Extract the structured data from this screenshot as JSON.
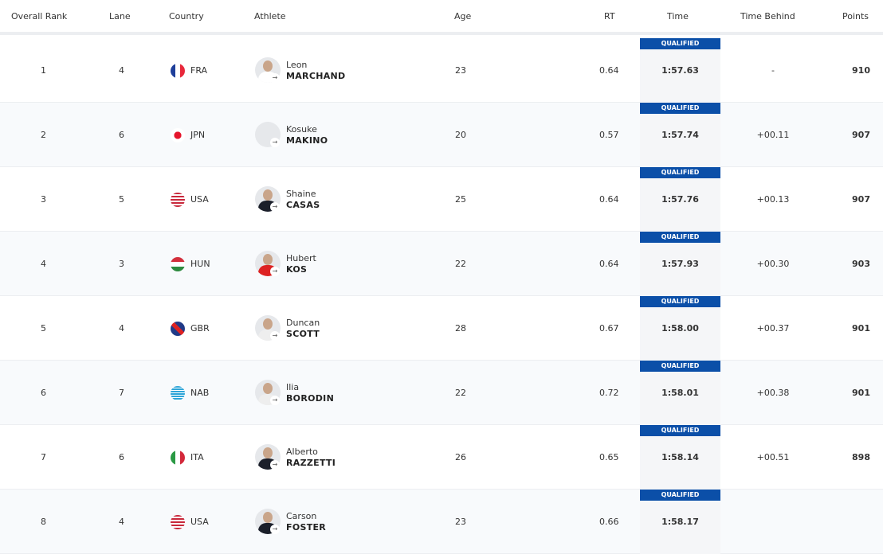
{
  "headers": {
    "rank": "Overall Rank",
    "lane": "Lane",
    "country": "Country",
    "athlete": "Athlete",
    "age": "Age",
    "rt": "RT",
    "time": "Time",
    "behind": "Time Behind",
    "points": "Points"
  },
  "qualified_label": "QUALIFIED",
  "colors": {
    "qualified_bg": "#0b4fa8",
    "alt_row": "#f8fafc",
    "time_col": "#f5f6f8"
  },
  "rows": [
    {
      "rank": "1",
      "lane": "4",
      "country": "FRA",
      "flag": "fra",
      "first": "Leon",
      "last": "MARCHAND",
      "age": "23",
      "rt": "0.64",
      "time": "1:57.63",
      "behind": "-",
      "points": "910"
    },
    {
      "rank": "2",
      "lane": "6",
      "country": "JPN",
      "flag": "jpn",
      "first": "Kosuke",
      "last": "MAKINO",
      "age": "20",
      "rt": "0.57",
      "time": "1:57.74",
      "behind": "+00.11",
      "points": "907"
    },
    {
      "rank": "3",
      "lane": "5",
      "country": "USA",
      "flag": "usa",
      "first": "Shaine",
      "last": "CASAS",
      "age": "25",
      "rt": "0.64",
      "time": "1:57.76",
      "behind": "+00.13",
      "points": "907"
    },
    {
      "rank": "4",
      "lane": "3",
      "country": "HUN",
      "flag": "hun",
      "first": "Hubert",
      "last": "KOS",
      "age": "22",
      "rt": "0.64",
      "time": "1:57.93",
      "behind": "+00.30",
      "points": "903"
    },
    {
      "rank": "5",
      "lane": "4",
      "country": "GBR",
      "flag": "gbr",
      "first": "Duncan",
      "last": "SCOTT",
      "age": "28",
      "rt": "0.67",
      "time": "1:58.00",
      "behind": "+00.37",
      "points": "901"
    },
    {
      "rank": "6",
      "lane": "7",
      "country": "NAB",
      "flag": "nab",
      "first": "Ilia",
      "last": "BORODIN",
      "age": "22",
      "rt": "0.72",
      "time": "1:58.01",
      "behind": "+00.38",
      "points": "901"
    },
    {
      "rank": "7",
      "lane": "6",
      "country": "ITA",
      "flag": "ita",
      "first": "Alberto",
      "last": "RAZZETTI",
      "age": "26",
      "rt": "0.65",
      "time": "1:58.14",
      "behind": "+00.51",
      "points": "898"
    },
    {
      "rank": "8",
      "lane": "4",
      "country": "USA",
      "flag": "usa",
      "first": "Carson",
      "last": "FOSTER",
      "age": "23",
      "rt": "0.66",
      "time": "1:58.17",
      "behind": "",
      "points": ""
    }
  ]
}
